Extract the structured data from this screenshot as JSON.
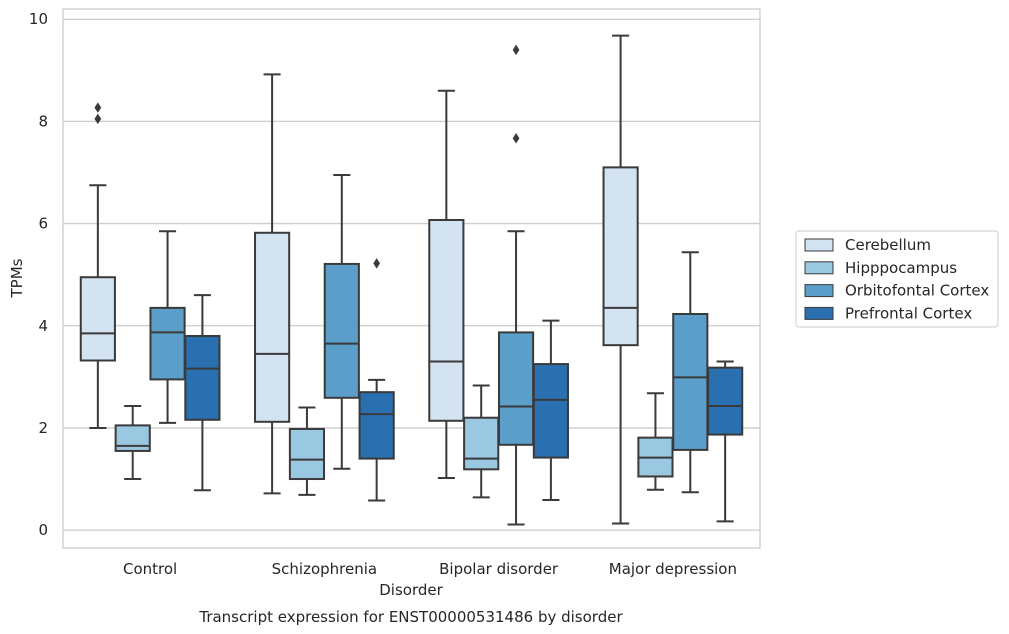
{
  "chart_data": {
    "type": "boxplot",
    "title": "Transcript expression for ENST00000531486 by disorder",
    "xlabel": "Disorder",
    "ylabel": "TPMs",
    "ylim": [
      -0.35,
      10.2
    ],
    "yticks": [
      0,
      2,
      4,
      6,
      8,
      10
    ],
    "grid": true,
    "legend_position": "right",
    "categories": [
      "Control",
      "Schizophrenia",
      "Bipolar disorder",
      "Major depression"
    ],
    "series": [
      {
        "name": "Cerebellum",
        "color": "#d3e3f1",
        "boxes": [
          {
            "whisker_low": 2.0,
            "q1": 3.32,
            "median": 3.85,
            "q3": 4.95,
            "whisker_high": 6.75,
            "outliers": [
              8.05,
              8.27
            ]
          },
          {
            "whisker_low": 0.72,
            "q1": 2.12,
            "median": 3.45,
            "q3": 5.82,
            "whisker_high": 8.92,
            "outliers": []
          },
          {
            "whisker_low": 1.02,
            "q1": 2.14,
            "median": 3.3,
            "q3": 6.07,
            "whisker_high": 8.6,
            "outliers": []
          },
          {
            "whisker_low": 0.13,
            "q1": 3.62,
            "median": 4.35,
            "q3": 7.1,
            "whisker_high": 9.68,
            "outliers": []
          }
        ]
      },
      {
        "name": "Hipppocampus",
        "color": "#9ac8e0",
        "boxes": [
          {
            "whisker_low": 1.0,
            "q1": 1.55,
            "median": 1.65,
            "q3": 2.05,
            "whisker_high": 2.43,
            "outliers": []
          },
          {
            "whisker_low": 0.69,
            "q1": 1.0,
            "median": 1.38,
            "q3": 1.98,
            "whisker_high": 2.4,
            "outliers": []
          },
          {
            "whisker_low": 0.64,
            "q1": 1.19,
            "median": 1.4,
            "q3": 2.2,
            "whisker_high": 2.83,
            "outliers": []
          },
          {
            "whisker_low": 0.79,
            "q1": 1.05,
            "median": 1.42,
            "q3": 1.81,
            "whisker_high": 2.68,
            "outliers": []
          }
        ]
      },
      {
        "name": "Orbitofontal Cortex",
        "color": "#5a9ec9",
        "boxes": [
          {
            "whisker_low": 2.1,
            "q1": 2.95,
            "median": 3.87,
            "q3": 4.35,
            "whisker_high": 5.85,
            "outliers": []
          },
          {
            "whisker_low": 1.2,
            "q1": 2.59,
            "median": 3.65,
            "q3": 5.21,
            "whisker_high": 6.95,
            "outliers": []
          },
          {
            "whisker_low": 0.11,
            "q1": 1.67,
            "median": 2.42,
            "q3": 3.87,
            "whisker_high": 5.85,
            "outliers": [
              7.67,
              9.4
            ]
          },
          {
            "whisker_low": 0.74,
            "q1": 1.57,
            "median": 2.99,
            "q3": 4.23,
            "whisker_high": 5.44,
            "outliers": []
          }
        ]
      },
      {
        "name": "Prefrontal Cortex",
        "color": "#2a6fb0",
        "boxes": [
          {
            "whisker_low": 0.78,
            "q1": 2.16,
            "median": 3.16,
            "q3": 3.8,
            "whisker_high": 4.6,
            "outliers": []
          },
          {
            "whisker_low": 0.58,
            "q1": 1.4,
            "median": 2.27,
            "q3": 2.7,
            "whisker_high": 2.94,
            "outliers": [
              5.22
            ]
          },
          {
            "whisker_low": 0.59,
            "q1": 1.42,
            "median": 2.55,
            "q3": 3.25,
            "whisker_high": 4.1,
            "outliers": []
          },
          {
            "whisker_low": 0.17,
            "q1": 1.87,
            "median": 2.43,
            "q3": 3.18,
            "whisker_high": 3.3,
            "outliers": []
          }
        ]
      }
    ]
  },
  "colors": {
    "grid": "#cccccc",
    "edge": "#3a3a3a",
    "frame": "#cccccc"
  }
}
